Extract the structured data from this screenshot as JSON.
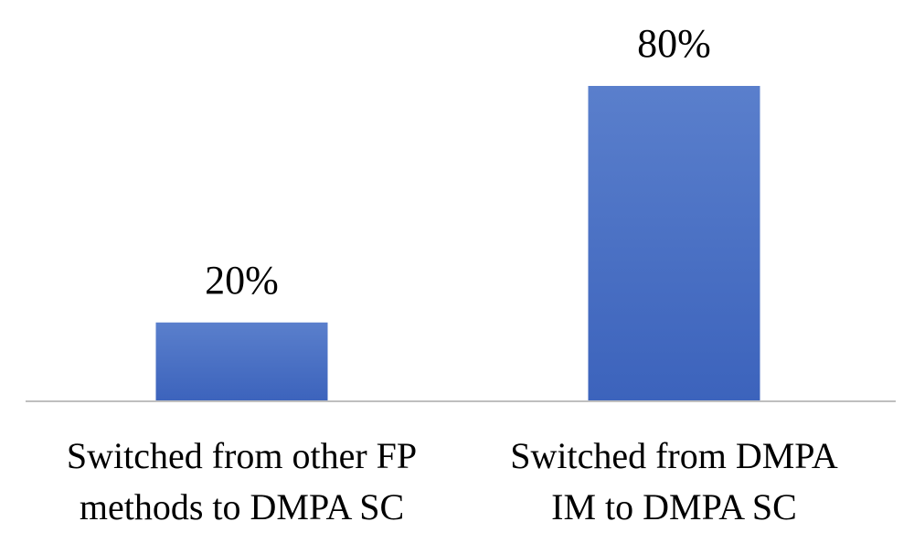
{
  "chart_data": {
    "type": "bar",
    "categories": [
      [
        "Switched from other FP",
        "methods to DMPA SC"
      ],
      [
        "Switched from DMPA",
        "IM to DMPA SC"
      ]
    ],
    "values": [
      20,
      80
    ],
    "data_labels": [
      "20%",
      "80%"
    ],
    "ylim": [
      0,
      80
    ],
    "grid": false,
    "legend": "none",
    "bar_color_top": "#5a7fcc",
    "bar_color_bottom": "#3c63bc"
  }
}
